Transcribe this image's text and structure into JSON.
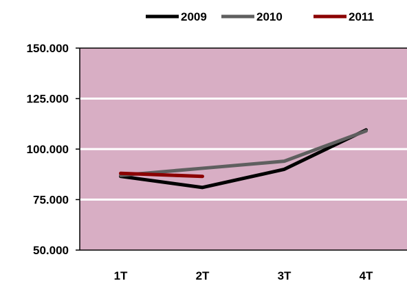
{
  "chart_data": {
    "type": "line",
    "title": "",
    "xlabel": "",
    "ylabel": "",
    "categories": [
      "1T",
      "2T",
      "3T",
      "4T"
    ],
    "ylim": [
      50000,
      150000
    ],
    "y_ticks": [
      50000,
      75000,
      100000,
      125000,
      150000
    ],
    "y_tick_labels": [
      "50.000",
      "75.000",
      "100.000",
      "125.000",
      "150.000"
    ],
    "grid": true,
    "plot_background": "#d8aec4",
    "legend_position": "top-right",
    "series": [
      {
        "name": "2009",
        "color": "#000000",
        "values": [
          86500,
          81000,
          90000,
          109500
        ]
      },
      {
        "name": "2010",
        "color": "#5f5f5f",
        "values": [
          87000,
          90500,
          94000,
          109000
        ]
      },
      {
        "name": "2011",
        "color": "#8b0000",
        "values": [
          88000,
          86500,
          null,
          null
        ]
      }
    ]
  }
}
